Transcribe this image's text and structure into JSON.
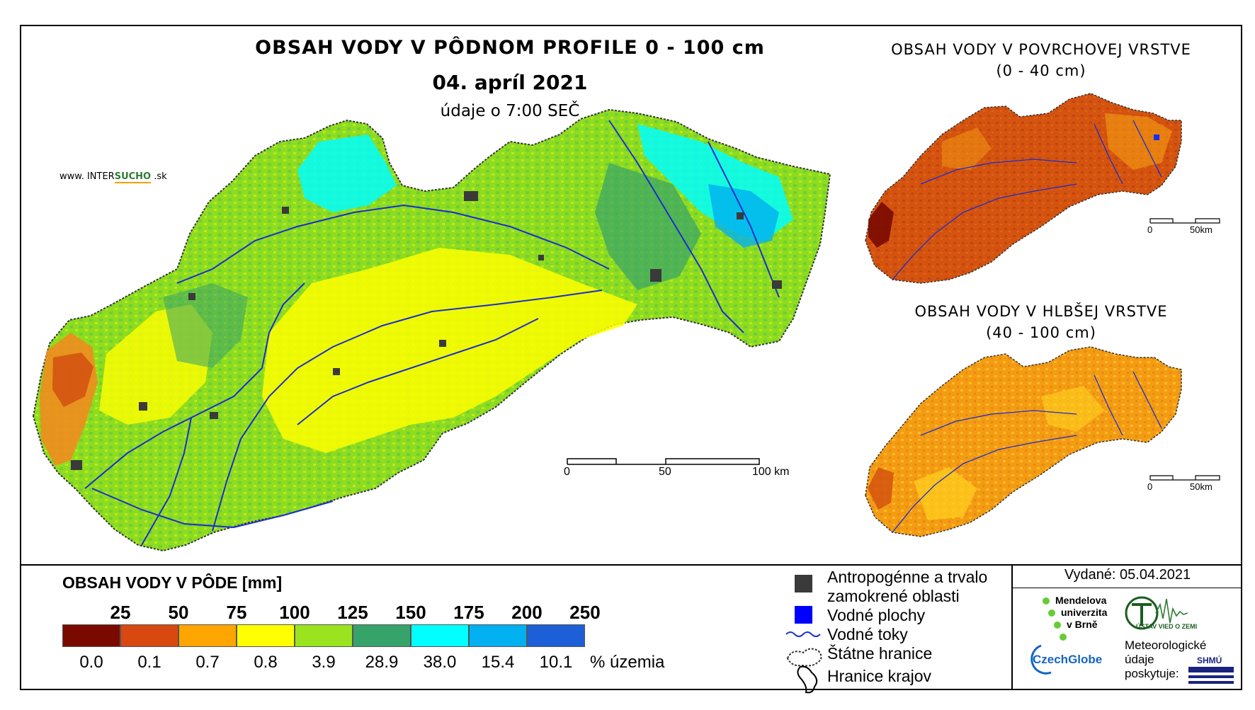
{
  "title": {
    "main": "OBSAH VODY V PÔDNOM PROFILE 0 - 100 cm",
    "date": "04. apríl 2021",
    "subtitle": "údaje o 7:00 SEČ"
  },
  "website": {
    "prefix": "www. INTER",
    "highlight": "SUCHO",
    "suffix": " .sk"
  },
  "inset_top": {
    "title": "OBSAH VODY V POVRCHOVEJ VRSTVE",
    "range": "(0 - 40 cm)",
    "scale": [
      "0",
      "50km"
    ]
  },
  "inset_bottom": {
    "title": "OBSAH VODY V HLBŠEJ VRSTVE",
    "range": "(40 - 100 cm)",
    "scale": [
      "0",
      "50km"
    ]
  },
  "main_scale": [
    "0",
    "50",
    "100 km"
  ],
  "legend": {
    "title": "OBSAH VODY V PÔDE [mm]",
    "thresholds": [
      "25",
      "50",
      "75",
      "100",
      "125",
      "150",
      "175",
      "200",
      "250"
    ],
    "classes": [
      {
        "color": "#7a0a00",
        "percent": "0.0"
      },
      {
        "color": "#d9480f",
        "percent": "0.1"
      },
      {
        "color": "#ffa500",
        "percent": "0.7"
      },
      {
        "color": "#ffff00",
        "percent": "0.8"
      },
      {
        "color": "#9be31f",
        "percent": "3.9"
      },
      {
        "color": "#36a36a",
        "percent": "28.9"
      },
      {
        "color": "#00ffff",
        "percent": "38.0"
      },
      {
        "color": "#00b0f0",
        "percent": "15.4"
      },
      {
        "color": "#1d5fd6",
        "percent": "10.1"
      }
    ],
    "percent_unit": "% územia"
  },
  "features": {
    "anthropogenic_1": "Antropogénne a trvalo",
    "anthropogenic_2": "zamokrené oblasti",
    "water_bodies": "Vodné plochy",
    "rivers": "Vodné toky",
    "state_border": "Štátne hranice",
    "region_border": "Hranice krajov"
  },
  "issued": "Vydané: 05.04.2021",
  "logos": {
    "mendel_1": "Mendelova",
    "mendel_2": "univerzita",
    "mendel_3": "v Brně",
    "czechglobe": "CzechGlobe",
    "uvz": "ÚSTAV VIED O ZEMI",
    "meteo_1": "Meteorologické",
    "meteo_2": "údaje",
    "meteo_3": "poskytuje:",
    "shmu": "SHMÚ"
  }
}
